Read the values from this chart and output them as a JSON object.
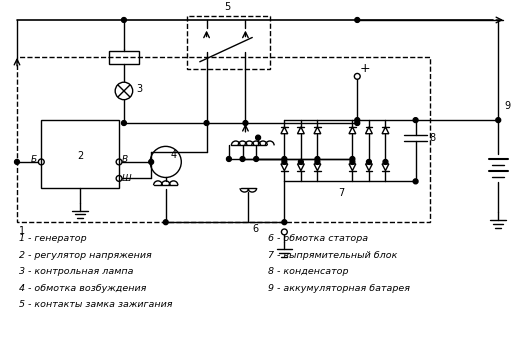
{
  "bg_color": "#ffffff",
  "line_color": "#000000",
  "legend_left": [
    "1 - генератор",
    "2 - регулятор напряжения",
    "3 - контрольная лампа",
    "4 - обмотка возбуждения",
    "5 - контакты замка зажигания"
  ],
  "legend_right": [
    "6 - обмотка статора",
    "7 - выпрямительный блок",
    "8 - конденсатор",
    "9 - аккумуляторная батарея"
  ],
  "figsize": [
    5.23,
    3.49
  ],
  "dpi": 100
}
